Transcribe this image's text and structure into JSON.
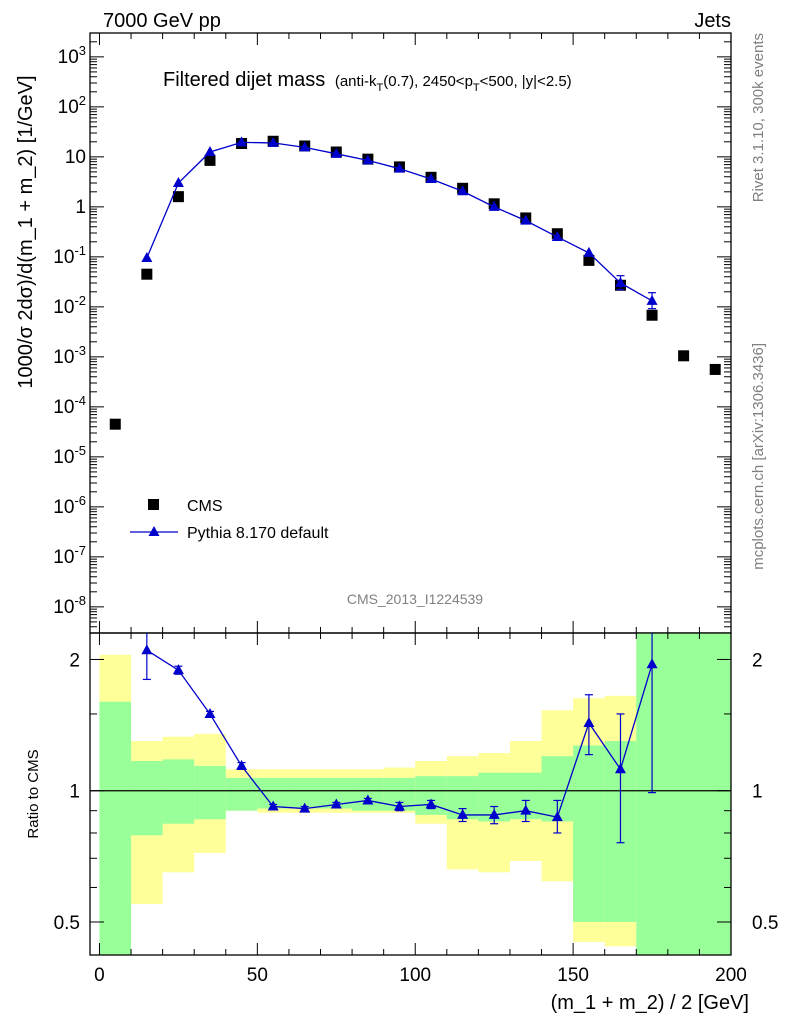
{
  "header": {
    "left": "7000 GeV pp",
    "right": "Jets"
  },
  "side": {
    "rivet": "Rivet 3.1.10,  300k events",
    "mcplots": "mcplots.cern.ch [arXiv:1306.3436]"
  },
  "analysis_id": "CMS_2013_I1224539",
  "chart_data": [
    {
      "type": "scatter",
      "title": "Filtered dijet mass",
      "subtitle_parts": {
        "pre": "(anti-k",
        "sub1": "T",
        "mid": "(0.7), 2450<p",
        "sub2": "T",
        "post": "<500, |y|<2.5)"
      },
      "ylabel": "1000/σ 2dσ)/d(m_1 + m_2) [1/GeV]",
      "yscale": "log",
      "ylim": [
        3e-09,
        3000
      ],
      "y_ticks": [
        {
          "value": 1e-08,
          "base": "10",
          "exp": "-8"
        },
        {
          "value": 1e-07,
          "base": "10",
          "exp": "-7"
        },
        {
          "value": 1e-06,
          "base": "10",
          "exp": "-6"
        },
        {
          "value": 1e-05,
          "base": "10",
          "exp": "-5"
        },
        {
          "value": 0.0001,
          "base": "10",
          "exp": "-4"
        },
        {
          "value": 0.001,
          "base": "10",
          "exp": "-3"
        },
        {
          "value": 0.01,
          "base": "10",
          "exp": "-2"
        },
        {
          "value": 0.1,
          "base": "10",
          "exp": "-1"
        },
        {
          "value": 1,
          "base": "1",
          "exp": ""
        },
        {
          "value": 10,
          "base": "10",
          "exp": ""
        },
        {
          "value": 100,
          "base": "10",
          "exp": "2"
        },
        {
          "value": 1000,
          "base": "10",
          "exp": "3"
        }
      ],
      "xlim": [
        -3,
        200
      ],
      "legend_position": "bottom-left",
      "series": [
        {
          "name": "CMS",
          "marker": "square",
          "color": "#000000",
          "x": [
            5,
            15,
            25,
            35,
            45,
            55,
            65,
            75,
            85,
            95,
            105,
            115,
            125,
            135,
            145,
            155,
            165,
            175,
            185,
            195
          ],
          "y": [
            4.5e-05,
            0.045,
            1.6,
            8.5,
            18.5,
            20.5,
            16.5,
            12.5,
            9.0,
            6.3,
            3.9,
            2.35,
            1.15,
            0.6,
            0.29,
            0.085,
            0.027,
            0.0068,
            0.00105,
            0.00056
          ]
        },
        {
          "name": "Pythia 8.170 default",
          "marker": "triangle",
          "color": "#0000cc",
          "x": [
            15,
            25,
            35,
            45,
            55,
            65,
            75,
            85,
            95,
            105,
            115,
            125,
            135,
            145,
            155,
            165,
            175
          ],
          "y": [
            0.095,
            3.0,
            12.5,
            19.5,
            19.0,
            15.5,
            11.5,
            8.5,
            5.8,
            3.6,
            2.05,
            1.0,
            0.53,
            0.25,
            0.12,
            0.03,
            0.0132
          ],
          "yerr_low": [
            0,
            0,
            0,
            0,
            0,
            0,
            0,
            0,
            0,
            0,
            0,
            0,
            0,
            0,
            0,
            0.008,
            0.004
          ],
          "yerr_high": [
            0,
            0,
            0,
            0,
            0,
            0,
            0,
            0,
            0,
            0,
            0,
            0,
            0,
            0,
            0,
            0.012,
            0.006
          ]
        }
      ]
    },
    {
      "type": "line",
      "ylabel": "Ratio to CMS",
      "xlabel": "(m_1 + m_2) / 2 [GeV]",
      "ylim": [
        0.42,
        2.3
      ],
      "xlim": [
        -3,
        200
      ],
      "y_ticks": [
        0.5,
        1,
        2
      ],
      "x_ticks": [
        0,
        50,
        100,
        150,
        200
      ],
      "reference_line": 1,
      "bands": [
        {
          "name": "stat uncertainty",
          "color": "#99ff99",
          "bins": [
            [
              0,
              10,
              0.1,
              1.6
            ],
            [
              10,
              20,
              0.79,
              1.17
            ],
            [
              20,
              30,
              0.84,
              1.18
            ],
            [
              30,
              40,
              0.86,
              1.14
            ],
            [
              40,
              50,
              0.9,
              1.07
            ],
            [
              50,
              60,
              0.91,
              1.07
            ],
            [
              60,
              70,
              0.91,
              1.07
            ],
            [
              70,
              80,
              0.91,
              1.07
            ],
            [
              80,
              90,
              0.9,
              1.07
            ],
            [
              90,
              100,
              0.9,
              1.07
            ],
            [
              100,
              110,
              0.88,
              1.08
            ],
            [
              110,
              120,
              0.86,
              1.08
            ],
            [
              120,
              130,
              0.85,
              1.1
            ],
            [
              130,
              140,
              0.86,
              1.1
            ],
            [
              140,
              150,
              0.85,
              1.2
            ],
            [
              150,
              160,
              0.5,
              1.27
            ],
            [
              160,
              170,
              0.5,
              1.3
            ],
            [
              170,
              200,
              0.1,
              2.4
            ]
          ]
        },
        {
          "name": "total uncertainty",
          "color": "#ffff99",
          "bins": [
            [
              0,
              10,
              0.1,
              2.05
            ],
            [
              10,
              20,
              0.55,
              1.3
            ],
            [
              20,
              30,
              0.65,
              1.33
            ],
            [
              30,
              40,
              0.72,
              1.35
            ],
            [
              40,
              50,
              0.9,
              1.12
            ],
            [
              50,
              60,
              0.89,
              1.12
            ],
            [
              60,
              70,
              0.89,
              1.12
            ],
            [
              70,
              80,
              0.89,
              1.12
            ],
            [
              80,
              90,
              0.89,
              1.12
            ],
            [
              90,
              100,
              0.89,
              1.13
            ],
            [
              100,
              110,
              0.84,
              1.17
            ],
            [
              110,
              120,
              0.66,
              1.2
            ],
            [
              120,
              130,
              0.65,
              1.22
            ],
            [
              130,
              140,
              0.69,
              1.3
            ],
            [
              140,
              150,
              0.62,
              1.53
            ],
            [
              150,
              160,
              0.45,
              1.63
            ],
            [
              160,
              170,
              0.44,
              1.65
            ],
            [
              170,
              200,
              0.1,
              2.4
            ]
          ]
        }
      ],
      "series": [
        {
          "name": "Pythia 8.170 default",
          "color": "#0000cc",
          "x": [
            15,
            25,
            35,
            45,
            55,
            65,
            75,
            85,
            95,
            105,
            115,
            125,
            135,
            145,
            155,
            165,
            175
          ],
          "y": [
            2.1,
            1.89,
            1.5,
            1.14,
            0.92,
            0.91,
            0.93,
            0.95,
            0.92,
            0.93,
            0.88,
            0.88,
            0.9,
            0.87,
            1.43,
            1.12,
            1.95
          ],
          "yerr_low": [
            0.3,
            0.04,
            0.02,
            0.02,
            0.01,
            0.01,
            0.01,
            0.01,
            0.02,
            0.02,
            0.03,
            0.04,
            0.05,
            0.07,
            0.22,
            0.36,
            0.96
          ],
          "yerr_high": [
            0.3,
            0.04,
            0.02,
            0.02,
            0.01,
            0.01,
            0.01,
            0.01,
            0.02,
            0.02,
            0.03,
            0.04,
            0.05,
            0.08,
            0.23,
            0.38,
            0.6
          ]
        }
      ]
    }
  ]
}
